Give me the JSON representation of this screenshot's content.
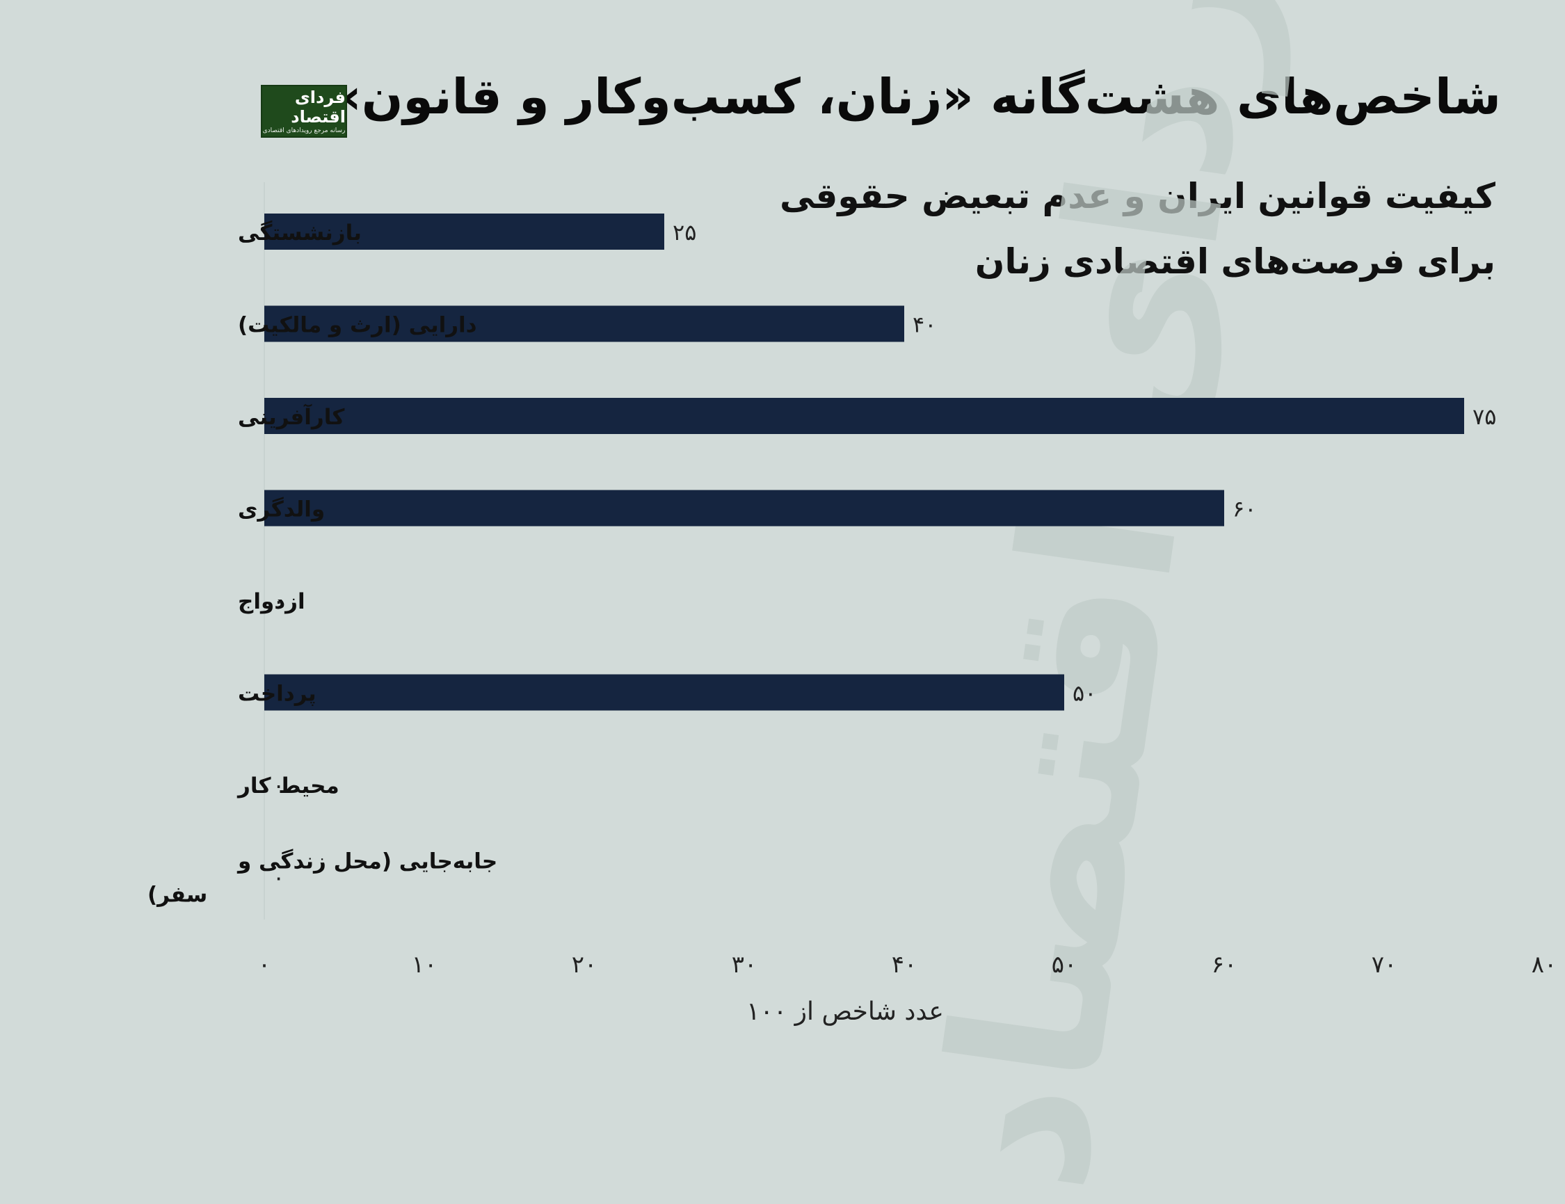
{
  "header": {
    "title": "شاخص‌های هشت‌گانه «زنان، کسب‌وکار و قانون»",
    "subtitle_line1": "کیفیت قوانین ایران و عدم تبعیض حقوقی",
    "subtitle_line2": "برای فرصت‌های اقتصادی زنان"
  },
  "logo": {
    "text": "فردای اقتصاد",
    "tagline": "رسانه مرجع رویدادهای اقتصادی"
  },
  "watermark": {
    "text": "فردای اقتصاد"
  },
  "colors": {
    "bar": "#152540",
    "background": "#d2dbd9",
    "logo_bg": "#1f4a1c"
  },
  "chart_data": {
    "type": "bar",
    "orientation": "horizontal",
    "categories": [
      "بازنشستگی",
      "دارایی (ارث و مالکیت)",
      "کارآفرینی",
      "والدگری",
      "ازدواج",
      "پرداخت",
      "محیط کار",
      "جابه‌جایی (محل زندگی و سفر)"
    ],
    "category_lines": [
      [
        "بازنشستگی"
      ],
      [
        "دارایی (ارث و مالکیت)"
      ],
      [
        "کارآفرینی"
      ],
      [
        "والدگری"
      ],
      [
        "ازدواج"
      ],
      [
        "پرداخت"
      ],
      [
        "محیط کار"
      ],
      [
        "جابه‌جایی (محل زندگی و",
        "سفر)"
      ]
    ],
    "values": [
      25,
      40,
      75,
      60,
      0,
      50,
      0,
      0
    ],
    "value_labels": [
      "۲۵",
      "۴۰",
      "۷۵",
      "۶۰",
      "۰",
      "۵۰",
      "۰",
      "۰"
    ],
    "xlim": [
      0,
      80
    ],
    "xticks": [
      0,
      10,
      20,
      30,
      40,
      50,
      60,
      70,
      80
    ],
    "xtick_labels": [
      "۰",
      "۱۰",
      "۲۰",
      "۳۰",
      "۴۰",
      "۵۰",
      "۶۰",
      "۷۰",
      "۸۰"
    ],
    "xlabel": "عدد شاخص از ۱۰۰",
    "grid": false,
    "legend": "none"
  }
}
